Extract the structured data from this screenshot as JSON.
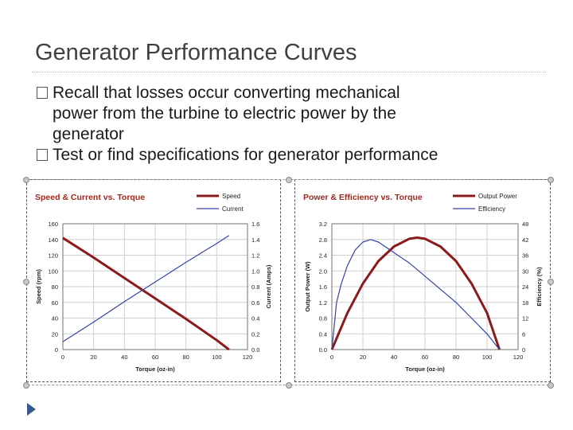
{
  "slide": {
    "title": "Generator Performance Curves",
    "bullets": [
      [
        "Recall that losses occur converting mechanical",
        "power from the turbine to electric power by the",
        "generator"
      ],
      [
        "Test or find specifications for generator performance"
      ]
    ]
  },
  "chart_data": [
    {
      "type": "line",
      "title": "Speed & Current vs. Torque",
      "xlabel": "Torque (oz-in)",
      "ylabel": "Speed (rpm)",
      "y2label": "Current (Amps)",
      "xlim": [
        0,
        120
      ],
      "ylim": [
        0,
        160
      ],
      "y2lim": [
        0,
        1.6
      ],
      "xticks": [
        "0",
        "20",
        "40",
        "60",
        "80",
        "100",
        "120"
      ],
      "yticks": [
        "0",
        "20",
        "40",
        "60",
        "80",
        "100",
        "120",
        "140",
        "160"
      ],
      "y2ticks": [
        "0.0",
        "0.2",
        "0.4",
        "0.6",
        "0.8",
        "1.0",
        "1.2",
        "1.4",
        "1.6"
      ],
      "grid": true,
      "legend": "top-right",
      "series": [
        {
          "name": "Speed",
          "axis": "left",
          "color": "#8b1a1a",
          "x": [
            0,
            20,
            40,
            60,
            80,
            100,
            108
          ],
          "y": [
            142,
            117,
            91,
            65,
            39,
            12,
            0
          ]
        },
        {
          "name": "Current",
          "axis": "right",
          "color": "#3344aa",
          "x": [
            0,
            20,
            40,
            60,
            80,
            100,
            108
          ],
          "y": [
            0.1,
            0.35,
            0.61,
            0.86,
            1.11,
            1.35,
            1.45
          ]
        }
      ]
    },
    {
      "type": "line",
      "title": "Power & Efficiency vs. Torque",
      "xlabel": "Torque (oz-in)",
      "ylabel": "Output Power (W)",
      "y2label": "Efficiency (%)",
      "xlim": [
        0,
        120
      ],
      "ylim": [
        0,
        3.2
      ],
      "y2lim": [
        0,
        48
      ],
      "xticks": [
        "0",
        "20",
        "40",
        "60",
        "80",
        "100",
        "120"
      ],
      "yticks": [
        "0.0",
        "0.4",
        "0.8",
        "1.2",
        "1.6",
        "2.0",
        "2.4",
        "2.8",
        "3.2"
      ],
      "y2ticks": [
        "0",
        "6",
        "12",
        "18",
        "24",
        "30",
        "36",
        "42",
        "48"
      ],
      "grid": true,
      "legend": "top-right",
      "series": [
        {
          "name": "Output Power",
          "axis": "left",
          "color": "#8b1a1a",
          "x": [
            0,
            10,
            20,
            30,
            40,
            50,
            55,
            60,
            70,
            80,
            90,
            100,
            108
          ],
          "y": [
            0,
            0.93,
            1.68,
            2.25,
            2.62,
            2.82,
            2.85,
            2.82,
            2.62,
            2.25,
            1.68,
            0.93,
            0
          ]
        },
        {
          "name": "Efficiency",
          "axis": "right",
          "color": "#3344aa",
          "x": [
            0,
            3,
            6,
            10,
            15,
            20,
            25,
            30,
            40,
            50,
            60,
            70,
            80,
            90,
            100,
            108
          ],
          "y": [
            0,
            18,
            25,
            32,
            38,
            41,
            42,
            41,
            37,
            33,
            28,
            23,
            18,
            12,
            6,
            0
          ]
        }
      ]
    }
  ]
}
